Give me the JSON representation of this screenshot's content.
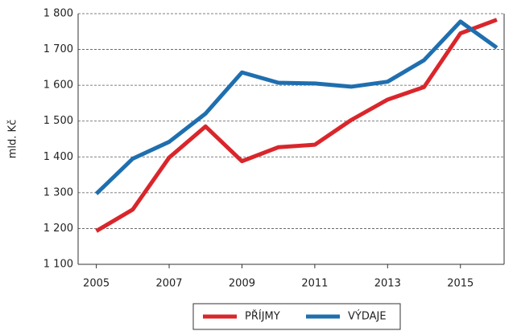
{
  "chart_data": {
    "type": "line",
    "y_label": "mld. Kč",
    "x": [
      2005,
      2006,
      2007,
      2008,
      2009,
      2010,
      2011,
      2012,
      2013,
      2014,
      2015,
      2016
    ],
    "series": [
      {
        "name": "PŘÍJMY",
        "color": "#d9262b",
        "values": [
          1193,
          1253,
          1398,
          1485,
          1388,
          1427,
          1434,
          1503,
          1560,
          1595,
          1745,
          1783
        ]
      },
      {
        "name": "VÝDAJE",
        "color": "#1f6faf",
        "values": [
          1297,
          1395,
          1442,
          1521,
          1636,
          1607,
          1605,
          1596,
          1610,
          1670,
          1778,
          1705
        ]
      }
    ],
    "xlim": [
      2004.5,
      2016.2
    ],
    "xticks": [
      2005,
      2007,
      2009,
      2011,
      2013,
      2015
    ],
    "ylim": [
      1100,
      1800
    ],
    "yticks": [
      {
        "value": 1100,
        "label": "1 100"
      },
      {
        "value": 1200,
        "label": "1 200"
      },
      {
        "value": 1300,
        "label": "1 300"
      },
      {
        "value": 1400,
        "label": "1 400"
      },
      {
        "value": 1500,
        "label": "1 500"
      },
      {
        "value": 1600,
        "label": "1 600"
      },
      {
        "value": 1700,
        "label": "1 700"
      },
      {
        "value": 1800,
        "label": "1 800"
      }
    ],
    "grid": true,
    "legend": "bottom"
  }
}
